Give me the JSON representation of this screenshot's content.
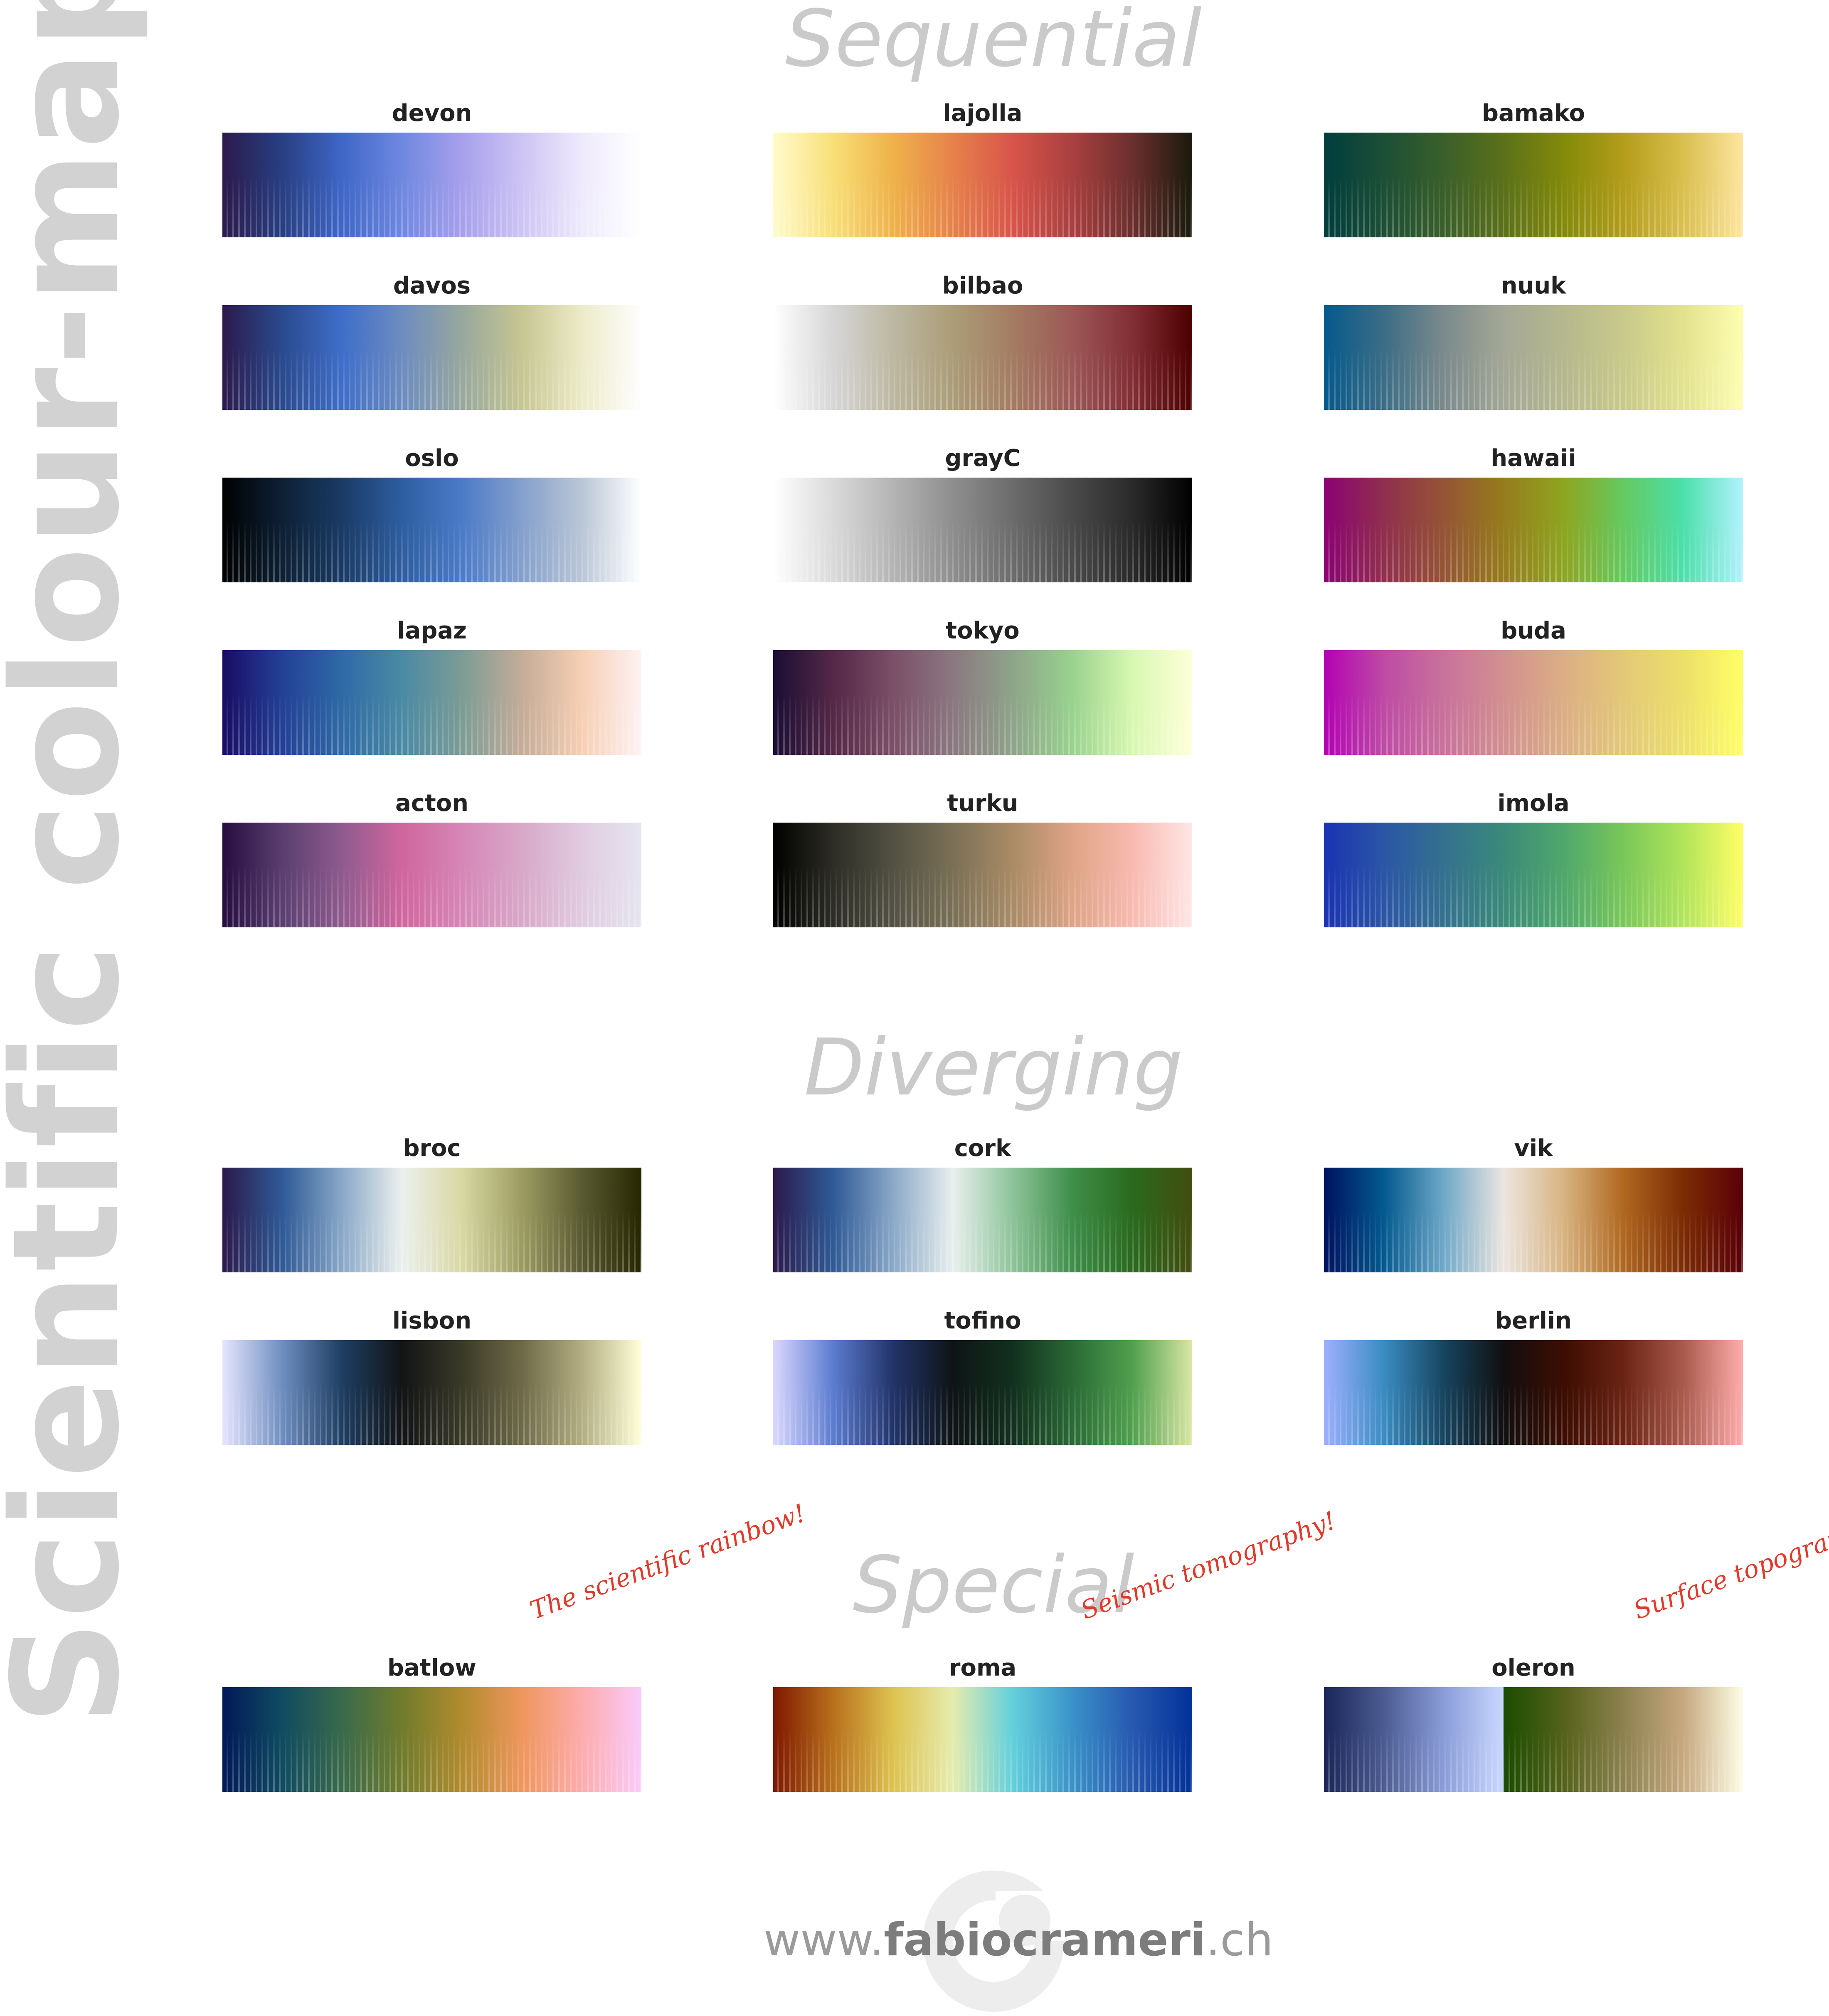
{
  "page": {
    "side_title": "Scientific colour-maps",
    "notes": {
      "batlow": "The scientific rainbow!",
      "roma": "Seismic tomography!",
      "oleron": "Surface topography!"
    },
    "footer": {
      "url_prefix": "www.",
      "url_name": "fabiocrameri",
      "url_suffix": ".ch"
    }
  },
  "sections": [
    {
      "title": "Sequential",
      "colormaps": [
        {
          "name": "devon",
          "colors": [
            "#2c1a4c",
            "#283f82",
            "#3f67c8",
            "#6f88e0",
            "#a7a0ec",
            "#cdc4f4",
            "#eeeafc",
            "#ffffff"
          ]
        },
        {
          "name": "lajolla",
          "colors": [
            "#fffbcc",
            "#f8df78",
            "#efb24a",
            "#e6824b",
            "#d8544a",
            "#a9403f",
            "#6b2f2e",
            "#1a1a0d"
          ]
        },
        {
          "name": "bamako",
          "colors": [
            "#003d3d",
            "#1c4f35",
            "#3a5f2a",
            "#5b701a",
            "#838a0a",
            "#b39d1a",
            "#d9bf4e",
            "#fde5a0"
          ]
        },
        {
          "name": "davos",
          "colors": [
            "#2c1a4c",
            "#2a4a8e",
            "#3f6ec9",
            "#6d8cc0",
            "#98a89e",
            "#c6c692",
            "#ecebc8",
            "#fefefe"
          ]
        },
        {
          "name": "bilbao",
          "colors": [
            "#ffffff",
            "#d6d6d6",
            "#bcb8a2",
            "#ab9d78",
            "#a47c62",
            "#9c5857",
            "#822e34",
            "#4c0000"
          ]
        },
        {
          "name": "nuuk",
          "colors": [
            "#05598c",
            "#3b6d86",
            "#7b8a8c",
            "#a4a796",
            "#b5b88e",
            "#c8c98a",
            "#e2e28e",
            "#fefeb2"
          ]
        },
        {
          "name": "oslo",
          "colors": [
            "#010101",
            "#0d2034",
            "#1a3b66",
            "#2e5ea0",
            "#4b7bc8",
            "#84a0cc",
            "#bac6d6",
            "#ffffff"
          ]
        },
        {
          "name": "grayC",
          "colors": [
            "#ffffff",
            "#dadada",
            "#b4b4b4",
            "#8e8e8e",
            "#6c6c6c",
            "#4a4a4a",
            "#2a2a2a",
            "#000000"
          ]
        },
        {
          "name": "hawaii",
          "colors": [
            "#8c0273",
            "#902f4e",
            "#955435",
            "#967c1d",
            "#8ea520",
            "#65c960",
            "#4bdfab",
            "#b3f2fd"
          ]
        },
        {
          "name": "lapaz",
          "colors": [
            "#1a0c64",
            "#234096",
            "#2f6aa6",
            "#4a8aa4",
            "#7c9c96",
            "#c4ac98",
            "#f6cfb4",
            "#fef2f3"
          ]
        },
        {
          "name": "tokyo",
          "colors": [
            "#1a0e34",
            "#542846",
            "#7b4f68",
            "#8b7880",
            "#8ea48a",
            "#99d28e",
            "#d8f8b0",
            "#feffd9"
          ]
        },
        {
          "name": "buda",
          "colors": [
            "#b301b3",
            "#be4ba5",
            "#c8729b",
            "#d29090",
            "#dbae85",
            "#e3c878",
            "#ecdf6a",
            "#ffff66"
          ]
        },
        {
          "name": "acton",
          "colors": [
            "#260d40",
            "#5a3f70",
            "#8f5b8e",
            "#d0669d",
            "#d686b6",
            "#d8a8c8",
            "#e0cbe0",
            "#e5e5f0"
          ]
        },
        {
          "name": "turku",
          "colors": [
            "#000000",
            "#2d2d26",
            "#525144",
            "#7a7056",
            "#a98b66",
            "#dea486",
            "#f8bab0",
            "#ffe6e6"
          ]
        },
        {
          "name": "imola",
          "colors": [
            "#1a33b3",
            "#2b56a6",
            "#34718f",
            "#3b8a7a",
            "#4fa76c",
            "#79c75a",
            "#b0e45a",
            "#ffff66"
          ]
        }
      ]
    },
    {
      "title": "Diverging",
      "colormaps": [
        {
          "name": "broc",
          "colors": [
            "#2c1a4c",
            "#2f5a96",
            "#89a8c8",
            "#ecf0ee",
            "#d8d8a4",
            "#9c9c62",
            "#5a5a32",
            "#262600"
          ]
        },
        {
          "name": "cork",
          "colors": [
            "#2c1a4c",
            "#2f5a96",
            "#8aa8c8",
            "#e8efee",
            "#8ec49a",
            "#3e8e4a",
            "#2a6a1e",
            "#424d0f"
          ]
        },
        {
          "name": "vik",
          "colors": [
            "#001260",
            "#035a8f",
            "#6fa8c8",
            "#ece5e0",
            "#d8b482",
            "#b06820",
            "#7c2c04",
            "#590008"
          ]
        },
        {
          "name": "lisbon",
          "colors": [
            "#e6e5ff",
            "#6e8ebf",
            "#1e3e62",
            "#121416",
            "#3a3a28",
            "#6e6a48",
            "#b2ad82",
            "#ffffd9"
          ]
        },
        {
          "name": "tofino",
          "colors": [
            "#dbd8ff",
            "#5c7cd0",
            "#22346a",
            "#0e1416",
            "#12301e",
            "#2a6a36",
            "#50a04e",
            "#dae7a5"
          ]
        },
        {
          "name": "berlin",
          "colors": [
            "#9eb0ff",
            "#3a8cc2",
            "#174560",
            "#110f10",
            "#3c0d02",
            "#6a2414",
            "#a95a4c",
            "#ffadad"
          ]
        }
      ]
    },
    {
      "title": "Special",
      "colormaps": [
        {
          "name": "batlow",
          "colors": [
            "#011959",
            "#104b61",
            "#3a6a4b",
            "#707c2c",
            "#b18b2e",
            "#ef965d",
            "#fdacad",
            "#facbfa"
          ]
        },
        {
          "name": "roma",
          "colors": [
            "#7e1700",
            "#b8701c",
            "#ddc24f",
            "#e6ecae",
            "#63d0dc",
            "#3a92c8",
            "#2759b0",
            "#023198"
          ]
        },
        {
          "name": "oleron",
          "colors": [
            "#1a2659",
            "#4c5c92",
            "#8a9cd8",
            "#cad8ff|#1a4c00",
            "#54621a",
            "#8c8250",
            "#c6a87e",
            "#fdfde6"
          ]
        }
      ]
    }
  ]
}
